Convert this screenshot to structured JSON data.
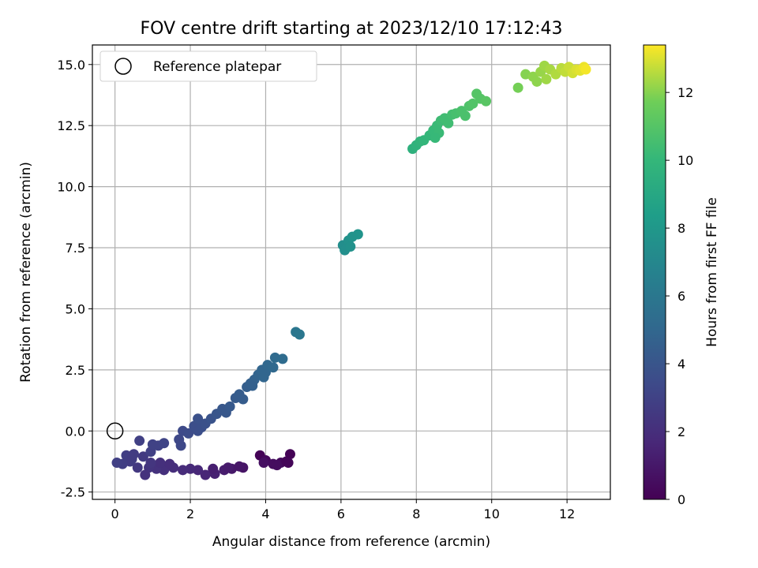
{
  "chart_data": {
    "type": "scatter",
    "title": "FOV centre drift starting at 2023/12/10 17:12:43",
    "xlabel": "Angular distance from reference (arcmin)",
    "ylabel": "Rotation from reference (arcmin)",
    "xlim": [
      -0.6,
      13.15
    ],
    "ylim": [
      -2.8,
      15.8
    ],
    "xticks": [
      0,
      2,
      4,
      6,
      8,
      10,
      12
    ],
    "yticks": [
      -2.5,
      0.0,
      2.5,
      5.0,
      7.5,
      10.0,
      12.5,
      15.0
    ],
    "grid": true,
    "legend": {
      "placement": "top-left",
      "entries": [
        "Reference platepar"
      ]
    },
    "reference_point": {
      "x": 0,
      "y": 0
    },
    "colorbar": {
      "label": "Hours from first FF file",
      "range": [
        0,
        13.4
      ],
      "ticks": [
        0,
        2,
        4,
        6,
        8,
        10,
        12
      ],
      "colormap": "viridis"
    },
    "series": [
      {
        "points": [
          {
            "x": 3.85,
            "y": -1.0,
            "t": 0.1
          },
          {
            "x": 4.0,
            "y": -1.2,
            "t": 0.3
          },
          {
            "x": 4.2,
            "y": -1.35,
            "t": 0.5
          },
          {
            "x": 4.4,
            "y": -1.3,
            "t": 0.4
          },
          {
            "x": 4.55,
            "y": -1.25,
            "t": 0.2
          },
          {
            "x": 4.65,
            "y": -0.95,
            "t": 0.1
          },
          {
            "x": 4.6,
            "y": -1.3,
            "t": 0.2
          },
          {
            "x": 3.95,
            "y": -1.3,
            "t": 0.6
          },
          {
            "x": 4.3,
            "y": -1.4,
            "t": 0.5
          },
          {
            "x": 3.4,
            "y": -1.5,
            "t": 0.8
          },
          {
            "x": 3.1,
            "y": -1.55,
            "t": 1.0
          },
          {
            "x": 2.9,
            "y": -1.6,
            "t": 1.2
          },
          {
            "x": 2.65,
            "y": -1.75,
            "t": 1.4
          },
          {
            "x": 2.4,
            "y": -1.8,
            "t": 1.6
          },
          {
            "x": 2.2,
            "y": -1.6,
            "t": 1.7
          },
          {
            "x": 2.0,
            "y": -1.55,
            "t": 1.8
          },
          {
            "x": 1.8,
            "y": -1.6,
            "t": 1.9
          },
          {
            "x": 2.6,
            "y": -1.55,
            "t": 1.3
          },
          {
            "x": 3.3,
            "y": -1.45,
            "t": 0.9
          },
          {
            "x": 3.0,
            "y": -1.5,
            "t": 1.1
          },
          {
            "x": 1.55,
            "y": -1.5,
            "t": 2.0
          },
          {
            "x": 1.3,
            "y": -1.6,
            "t": 2.1
          },
          {
            "x": 1.1,
            "y": -1.55,
            "t": 2.2
          },
          {
            "x": 0.9,
            "y": -1.5,
            "t": 2.3
          },
          {
            "x": 0.8,
            "y": -1.8,
            "t": 2.2
          },
          {
            "x": 0.6,
            "y": -1.5,
            "t": 2.5
          },
          {
            "x": 1.45,
            "y": -1.35,
            "t": 2.0
          },
          {
            "x": 1.2,
            "y": -1.3,
            "t": 2.1
          },
          {
            "x": 0.95,
            "y": -1.3,
            "t": 2.4
          },
          {
            "x": 0.4,
            "y": -1.25,
            "t": 2.7
          },
          {
            "x": 0.2,
            "y": -1.35,
            "t": 2.8
          },
          {
            "x": 0.05,
            "y": -1.3,
            "t": 2.9
          },
          {
            "x": 0.3,
            "y": -1.0,
            "t": 2.8
          },
          {
            "x": 0.5,
            "y": -0.95,
            "t": 2.7
          },
          {
            "x": 0.65,
            "y": -0.4,
            "t": 2.9
          },
          {
            "x": 0.75,
            "y": -1.05,
            "t": 2.6
          },
          {
            "x": 0.95,
            "y": -0.85,
            "t": 2.9
          },
          {
            "x": 1.15,
            "y": -0.6,
            "t": 3.0
          },
          {
            "x": 1.3,
            "y": -0.5,
            "t": 3.1
          },
          {
            "x": 1.0,
            "y": -0.55,
            "t": 3.0
          },
          {
            "x": 0.45,
            "y": -1.15,
            "t": 2.7
          },
          {
            "x": 1.7,
            "y": -0.35,
            "t": 3.3
          },
          {
            "x": 1.8,
            "y": 0.0,
            "t": 3.4
          },
          {
            "x": 1.95,
            "y": -0.1,
            "t": 3.5
          },
          {
            "x": 1.75,
            "y": -0.6,
            "t": 3.3
          },
          {
            "x": 2.1,
            "y": 0.2,
            "t": 3.6
          },
          {
            "x": 2.2,
            "y": 0.0,
            "t": 3.6
          },
          {
            "x": 2.3,
            "y": 0.15,
            "t": 3.7
          },
          {
            "x": 2.2,
            "y": 0.5,
            "t": 3.8
          },
          {
            "x": 2.4,
            "y": 0.3,
            "t": 3.8
          },
          {
            "x": 2.55,
            "y": 0.5,
            "t": 3.9
          },
          {
            "x": 2.7,
            "y": 0.7,
            "t": 4.0
          },
          {
            "x": 2.85,
            "y": 0.9,
            "t": 4.1
          },
          {
            "x": 2.95,
            "y": 0.75,
            "t": 4.1
          },
          {
            "x": 3.05,
            "y": 1.0,
            "t": 4.2
          },
          {
            "x": 3.2,
            "y": 1.35,
            "t": 4.3
          },
          {
            "x": 3.3,
            "y": 1.5,
            "t": 4.4
          },
          {
            "x": 3.4,
            "y": 1.3,
            "t": 4.4
          },
          {
            "x": 3.5,
            "y": 1.8,
            "t": 4.5
          },
          {
            "x": 3.6,
            "y": 1.95,
            "t": 4.6
          },
          {
            "x": 3.7,
            "y": 2.1,
            "t": 4.7
          },
          {
            "x": 3.8,
            "y": 2.3,
            "t": 4.8
          },
          {
            "x": 3.9,
            "y": 2.5,
            "t": 4.9
          },
          {
            "x": 4.0,
            "y": 2.4,
            "t": 4.9
          },
          {
            "x": 4.05,
            "y": 2.7,
            "t": 5.0
          },
          {
            "x": 4.2,
            "y": 2.6,
            "t": 5.1
          },
          {
            "x": 4.25,
            "y": 3.0,
            "t": 5.2
          },
          {
            "x": 4.45,
            "y": 2.95,
            "t": 5.3
          },
          {
            "x": 3.65,
            "y": 1.85,
            "t": 4.6
          },
          {
            "x": 3.95,
            "y": 2.2,
            "t": 4.9
          },
          {
            "x": 4.8,
            "y": 4.05,
            "t": 5.9
          },
          {
            "x": 4.9,
            "y": 3.95,
            "t": 6.0
          },
          {
            "x": 6.05,
            "y": 7.6,
            "t": 7.4
          },
          {
            "x": 6.1,
            "y": 7.4,
            "t": 7.5
          },
          {
            "x": 6.2,
            "y": 7.8,
            "t": 7.6
          },
          {
            "x": 6.25,
            "y": 7.55,
            "t": 7.6
          },
          {
            "x": 6.45,
            "y": 8.05,
            "t": 7.8
          },
          {
            "x": 6.3,
            "y": 7.95,
            "t": 7.7
          },
          {
            "x": 7.9,
            "y": 11.55,
            "t": 9.6
          },
          {
            "x": 8.0,
            "y": 11.7,
            "t": 9.7
          },
          {
            "x": 8.1,
            "y": 11.85,
            "t": 9.8
          },
          {
            "x": 8.2,
            "y": 11.9,
            "t": 9.9
          },
          {
            "x": 8.35,
            "y": 12.1,
            "t": 10.0
          },
          {
            "x": 8.45,
            "y": 12.3,
            "t": 10.1
          },
          {
            "x": 8.55,
            "y": 12.5,
            "t": 10.2
          },
          {
            "x": 8.6,
            "y": 12.2,
            "t": 10.2
          },
          {
            "x": 8.65,
            "y": 12.7,
            "t": 10.3
          },
          {
            "x": 8.75,
            "y": 12.8,
            "t": 10.4
          },
          {
            "x": 8.85,
            "y": 12.6,
            "t": 10.4
          },
          {
            "x": 8.95,
            "y": 12.95,
            "t": 10.5
          },
          {
            "x": 9.05,
            "y": 13.0,
            "t": 10.6
          },
          {
            "x": 9.2,
            "y": 13.1,
            "t": 10.7
          },
          {
            "x": 9.3,
            "y": 12.9,
            "t": 10.7
          },
          {
            "x": 9.4,
            "y": 13.3,
            "t": 10.8
          },
          {
            "x": 9.5,
            "y": 13.4,
            "t": 10.9
          },
          {
            "x": 9.6,
            "y": 13.8,
            "t": 11.0
          },
          {
            "x": 9.7,
            "y": 13.6,
            "t": 11.0
          },
          {
            "x": 9.85,
            "y": 13.5,
            "t": 11.1
          },
          {
            "x": 8.5,
            "y": 12.0,
            "t": 10.1
          },
          {
            "x": 10.7,
            "y": 14.05,
            "t": 11.8
          },
          {
            "x": 10.9,
            "y": 14.6,
            "t": 12.0
          },
          {
            "x": 11.1,
            "y": 14.5,
            "t": 12.1
          },
          {
            "x": 11.2,
            "y": 14.3,
            "t": 12.1
          },
          {
            "x": 11.3,
            "y": 14.7,
            "t": 12.2
          },
          {
            "x": 11.4,
            "y": 14.95,
            "t": 12.3
          },
          {
            "x": 11.45,
            "y": 14.4,
            "t": 12.3
          },
          {
            "x": 11.55,
            "y": 14.8,
            "t": 12.4
          },
          {
            "x": 11.7,
            "y": 14.6,
            "t": 12.5
          },
          {
            "x": 11.85,
            "y": 14.85,
            "t": 12.6
          },
          {
            "x": 11.95,
            "y": 14.7,
            "t": 12.7
          },
          {
            "x": 12.05,
            "y": 14.9,
            "t": 12.8
          },
          {
            "x": 12.15,
            "y": 14.65,
            "t": 12.9
          },
          {
            "x": 12.25,
            "y": 14.8,
            "t": 13.0
          },
          {
            "x": 12.35,
            "y": 14.75,
            "t": 13.1
          },
          {
            "x": 12.45,
            "y": 14.9,
            "t": 13.2
          },
          {
            "x": 12.5,
            "y": 14.8,
            "t": 13.3
          }
        ]
      }
    ]
  }
}
